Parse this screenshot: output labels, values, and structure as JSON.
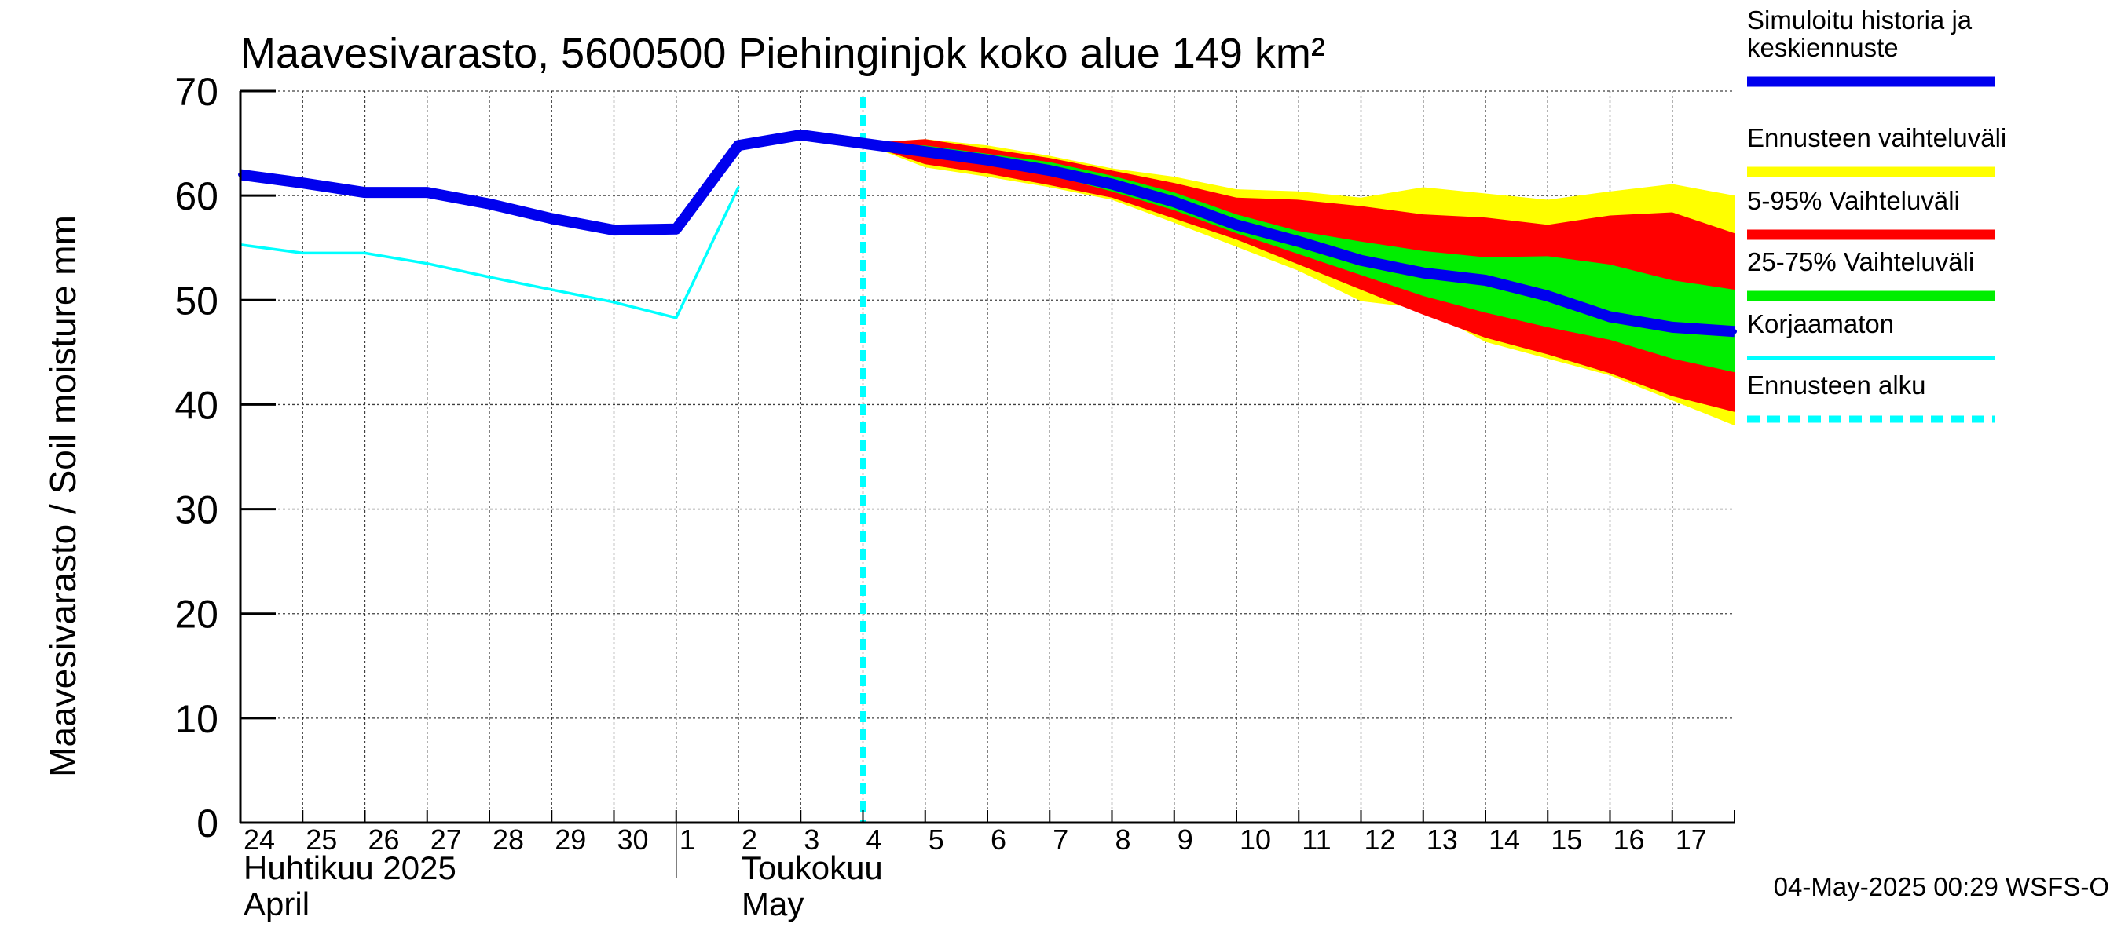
{
  "chart_data": {
    "type": "line",
    "title": "Maavesivarasto, 5600500 Piehinginjok koko alue 149 km²",
    "ylabel": "Maavesivarasto / Soil moisture   mm",
    "ylim": [
      0,
      70
    ],
    "yticks": [
      "0",
      "10",
      "20",
      "30",
      "40",
      "50",
      "60",
      "70"
    ],
    "xlim": [
      0,
      24
    ],
    "day_labels": [
      "24",
      "25",
      "26",
      "27",
      "28",
      "29",
      "30",
      "1",
      "2",
      "3",
      "4",
      "5",
      "6",
      "7",
      "8",
      "9",
      "10",
      "11",
      "12",
      "13",
      "14",
      "15",
      "16",
      "17"
    ],
    "month_labels": [
      {
        "line1": "Huhtikuu  2025",
        "line2": "April",
        "at": 0
      },
      {
        "line1": "Toukokuu",
        "line2": "May",
        "at": 8
      }
    ],
    "month_divider_at": 7,
    "forecast_start": 10,
    "series": {
      "simulated": {
        "name": "Simuloitu historia ja keskiennuste",
        "color": "#0000ee",
        "points": [
          [
            0,
            62.0
          ],
          [
            1,
            61.2
          ],
          [
            2,
            60.3
          ],
          [
            3,
            60.3
          ],
          [
            4,
            59.2
          ],
          [
            5,
            57.8
          ],
          [
            6,
            56.7
          ],
          [
            7,
            56.8
          ],
          [
            8,
            64.8
          ],
          [
            9,
            65.8
          ],
          [
            10,
            65.0
          ],
          [
            11,
            64.2
          ],
          [
            12,
            63.4
          ],
          [
            13,
            62.4
          ],
          [
            14,
            61.1
          ],
          [
            15,
            59.4
          ],
          [
            16,
            57.2
          ],
          [
            17,
            55.6
          ],
          [
            18,
            53.8
          ],
          [
            19,
            52.6
          ],
          [
            20,
            51.9
          ],
          [
            21,
            50.4
          ],
          [
            22,
            48.4
          ],
          [
            23,
            47.4
          ],
          [
            24,
            47.0
          ]
        ]
      },
      "uncorrected": {
        "name": "Korjaamaton",
        "color": "#00ffff",
        "points": [
          [
            0,
            55.3
          ],
          [
            1,
            54.5
          ],
          [
            2,
            54.5
          ],
          [
            3,
            53.5
          ],
          [
            4,
            52.2
          ],
          [
            5,
            51.0
          ],
          [
            6,
            49.8
          ],
          [
            7,
            48.3
          ],
          [
            8,
            60.8
          ]
        ]
      }
    },
    "bands": [
      {
        "name": "Ennusteen vaihteluväli",
        "color": "#ffff00",
        "upper": [
          [
            10,
            65.0
          ],
          [
            11,
            65.4
          ],
          [
            12,
            64.8
          ],
          [
            13,
            63.8
          ],
          [
            14,
            62.6
          ],
          [
            15,
            61.8
          ],
          [
            16,
            60.6
          ],
          [
            17,
            60.4
          ],
          [
            18,
            59.8
          ],
          [
            19,
            60.8
          ],
          [
            20,
            60.2
          ],
          [
            21,
            59.6
          ],
          [
            22,
            60.4
          ],
          [
            23,
            61.1
          ],
          [
            24,
            60.0
          ]
        ],
        "lower": [
          [
            10,
            65.0
          ],
          [
            11,
            62.7
          ],
          [
            12,
            61.8
          ],
          [
            13,
            60.8
          ],
          [
            14,
            59.6
          ],
          [
            15,
            57.4
          ],
          [
            16,
            55.1
          ],
          [
            17,
            52.8
          ],
          [
            18,
            49.9
          ],
          [
            19,
            49.2
          ],
          [
            20,
            46.0
          ],
          [
            21,
            44.4
          ],
          [
            22,
            42.8
          ],
          [
            23,
            40.4
          ],
          [
            24,
            38.0
          ]
        ]
      },
      {
        "name": "5-95% Vaihteluväli",
        "color": "#ff0000",
        "upper": [
          [
            10,
            65.0
          ],
          [
            11,
            65.4
          ],
          [
            12,
            64.5
          ],
          [
            13,
            63.6
          ],
          [
            14,
            62.4
          ],
          [
            15,
            61.2
          ],
          [
            16,
            59.8
          ],
          [
            17,
            59.6
          ],
          [
            18,
            59.0
          ],
          [
            19,
            58.2
          ],
          [
            20,
            57.9
          ],
          [
            21,
            57.2
          ],
          [
            22,
            58.1
          ],
          [
            23,
            58.4
          ],
          [
            24,
            56.4
          ]
        ],
        "lower": [
          [
            10,
            65.0
          ],
          [
            11,
            63.0
          ],
          [
            12,
            62.1
          ],
          [
            13,
            61.0
          ],
          [
            14,
            59.8
          ],
          [
            15,
            57.8
          ],
          [
            16,
            55.8
          ],
          [
            17,
            53.4
          ],
          [
            18,
            51.0
          ],
          [
            19,
            48.6
          ],
          [
            20,
            46.4
          ],
          [
            21,
            44.8
          ],
          [
            22,
            43.0
          ],
          [
            23,
            40.8
          ],
          [
            24,
            39.3
          ]
        ]
      },
      {
        "name": "25-75% Vaihteluväli",
        "color": "#00ee00",
        "upper": [
          [
            10,
            65.0
          ],
          [
            11,
            64.8
          ],
          [
            12,
            64.0
          ],
          [
            13,
            63.2
          ],
          [
            14,
            61.9
          ],
          [
            15,
            60.3
          ],
          [
            16,
            58.2
          ],
          [
            17,
            56.6
          ],
          [
            18,
            55.6
          ],
          [
            19,
            54.7
          ],
          [
            20,
            54.1
          ],
          [
            21,
            54.2
          ],
          [
            22,
            53.4
          ],
          [
            23,
            51.9
          ],
          [
            24,
            51.0
          ]
        ],
        "lower": [
          [
            10,
            65.0
          ],
          [
            11,
            64.0
          ],
          [
            12,
            63.2
          ],
          [
            13,
            62.0
          ],
          [
            14,
            60.4
          ],
          [
            15,
            58.6
          ],
          [
            16,
            56.4
          ],
          [
            17,
            54.4
          ],
          [
            18,
            52.4
          ],
          [
            19,
            50.4
          ],
          [
            20,
            48.8
          ],
          [
            21,
            47.4
          ],
          [
            22,
            46.2
          ],
          [
            23,
            44.4
          ],
          [
            24,
            43.1
          ]
        ]
      }
    ],
    "legend": [
      {
        "label": "Simuloitu historia ja\nkeskiennuste",
        "color": "#0000ee",
        "style": "solid"
      },
      {
        "label": "Ennusteen vaihteluväli",
        "color": "#ffff00",
        "style": "solid"
      },
      {
        "label": "5-95% Vaihteluväli",
        "color": "#ff0000",
        "style": "solid"
      },
      {
        "label": "25-75% Vaihteluväli",
        "color": "#00ee00",
        "style": "solid"
      },
      {
        "label": "Korjaamaton",
        "color": "#00ffff",
        "style": "thin"
      },
      {
        "label": "Ennusteen alku",
        "color": "#00ffff",
        "style": "dashed"
      }
    ],
    "legend_position": "right",
    "grid": true,
    "footer": "04-May-2025 00:29 WSFS-O"
  }
}
